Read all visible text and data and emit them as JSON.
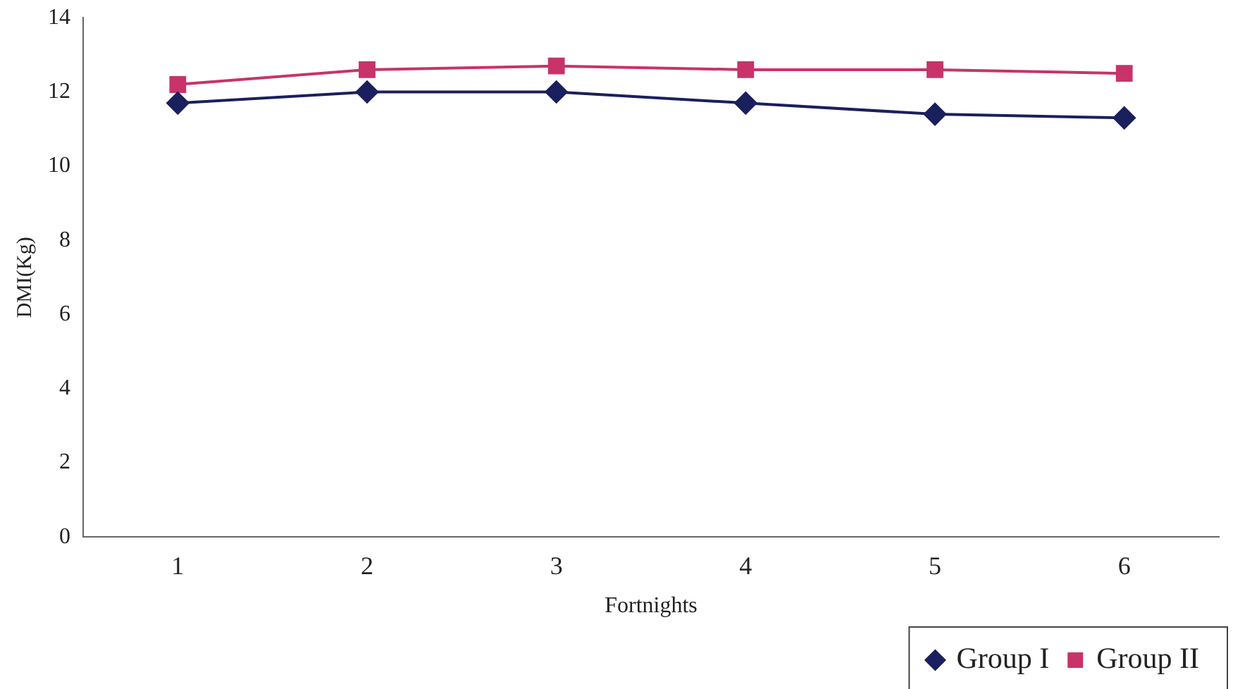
{
  "chart_data": {
    "type": "line",
    "xlabel": "Fortnights",
    "ylabel": "DMI(Kg)",
    "categories": [
      "1",
      "2",
      "3",
      "4",
      "5",
      "6"
    ],
    "series": [
      {
        "name": "Group I",
        "color": "#1a1f5e",
        "values": [
          11.7,
          12.0,
          12.0,
          11.7,
          11.4,
          11.3
        ],
        "marker": "diamond"
      },
      {
        "name": "Group II",
        "color": "#c8336a",
        "values": [
          12.2,
          12.6,
          12.7,
          12.6,
          12.6,
          12.5
        ],
        "marker": "square"
      }
    ],
    "ylim": [
      0,
      14
    ],
    "yticks": [
      0,
      2,
      4,
      6,
      8,
      10,
      12,
      14
    ],
    "grid": false,
    "legend": "bottom right",
    "line_style": "solid"
  }
}
